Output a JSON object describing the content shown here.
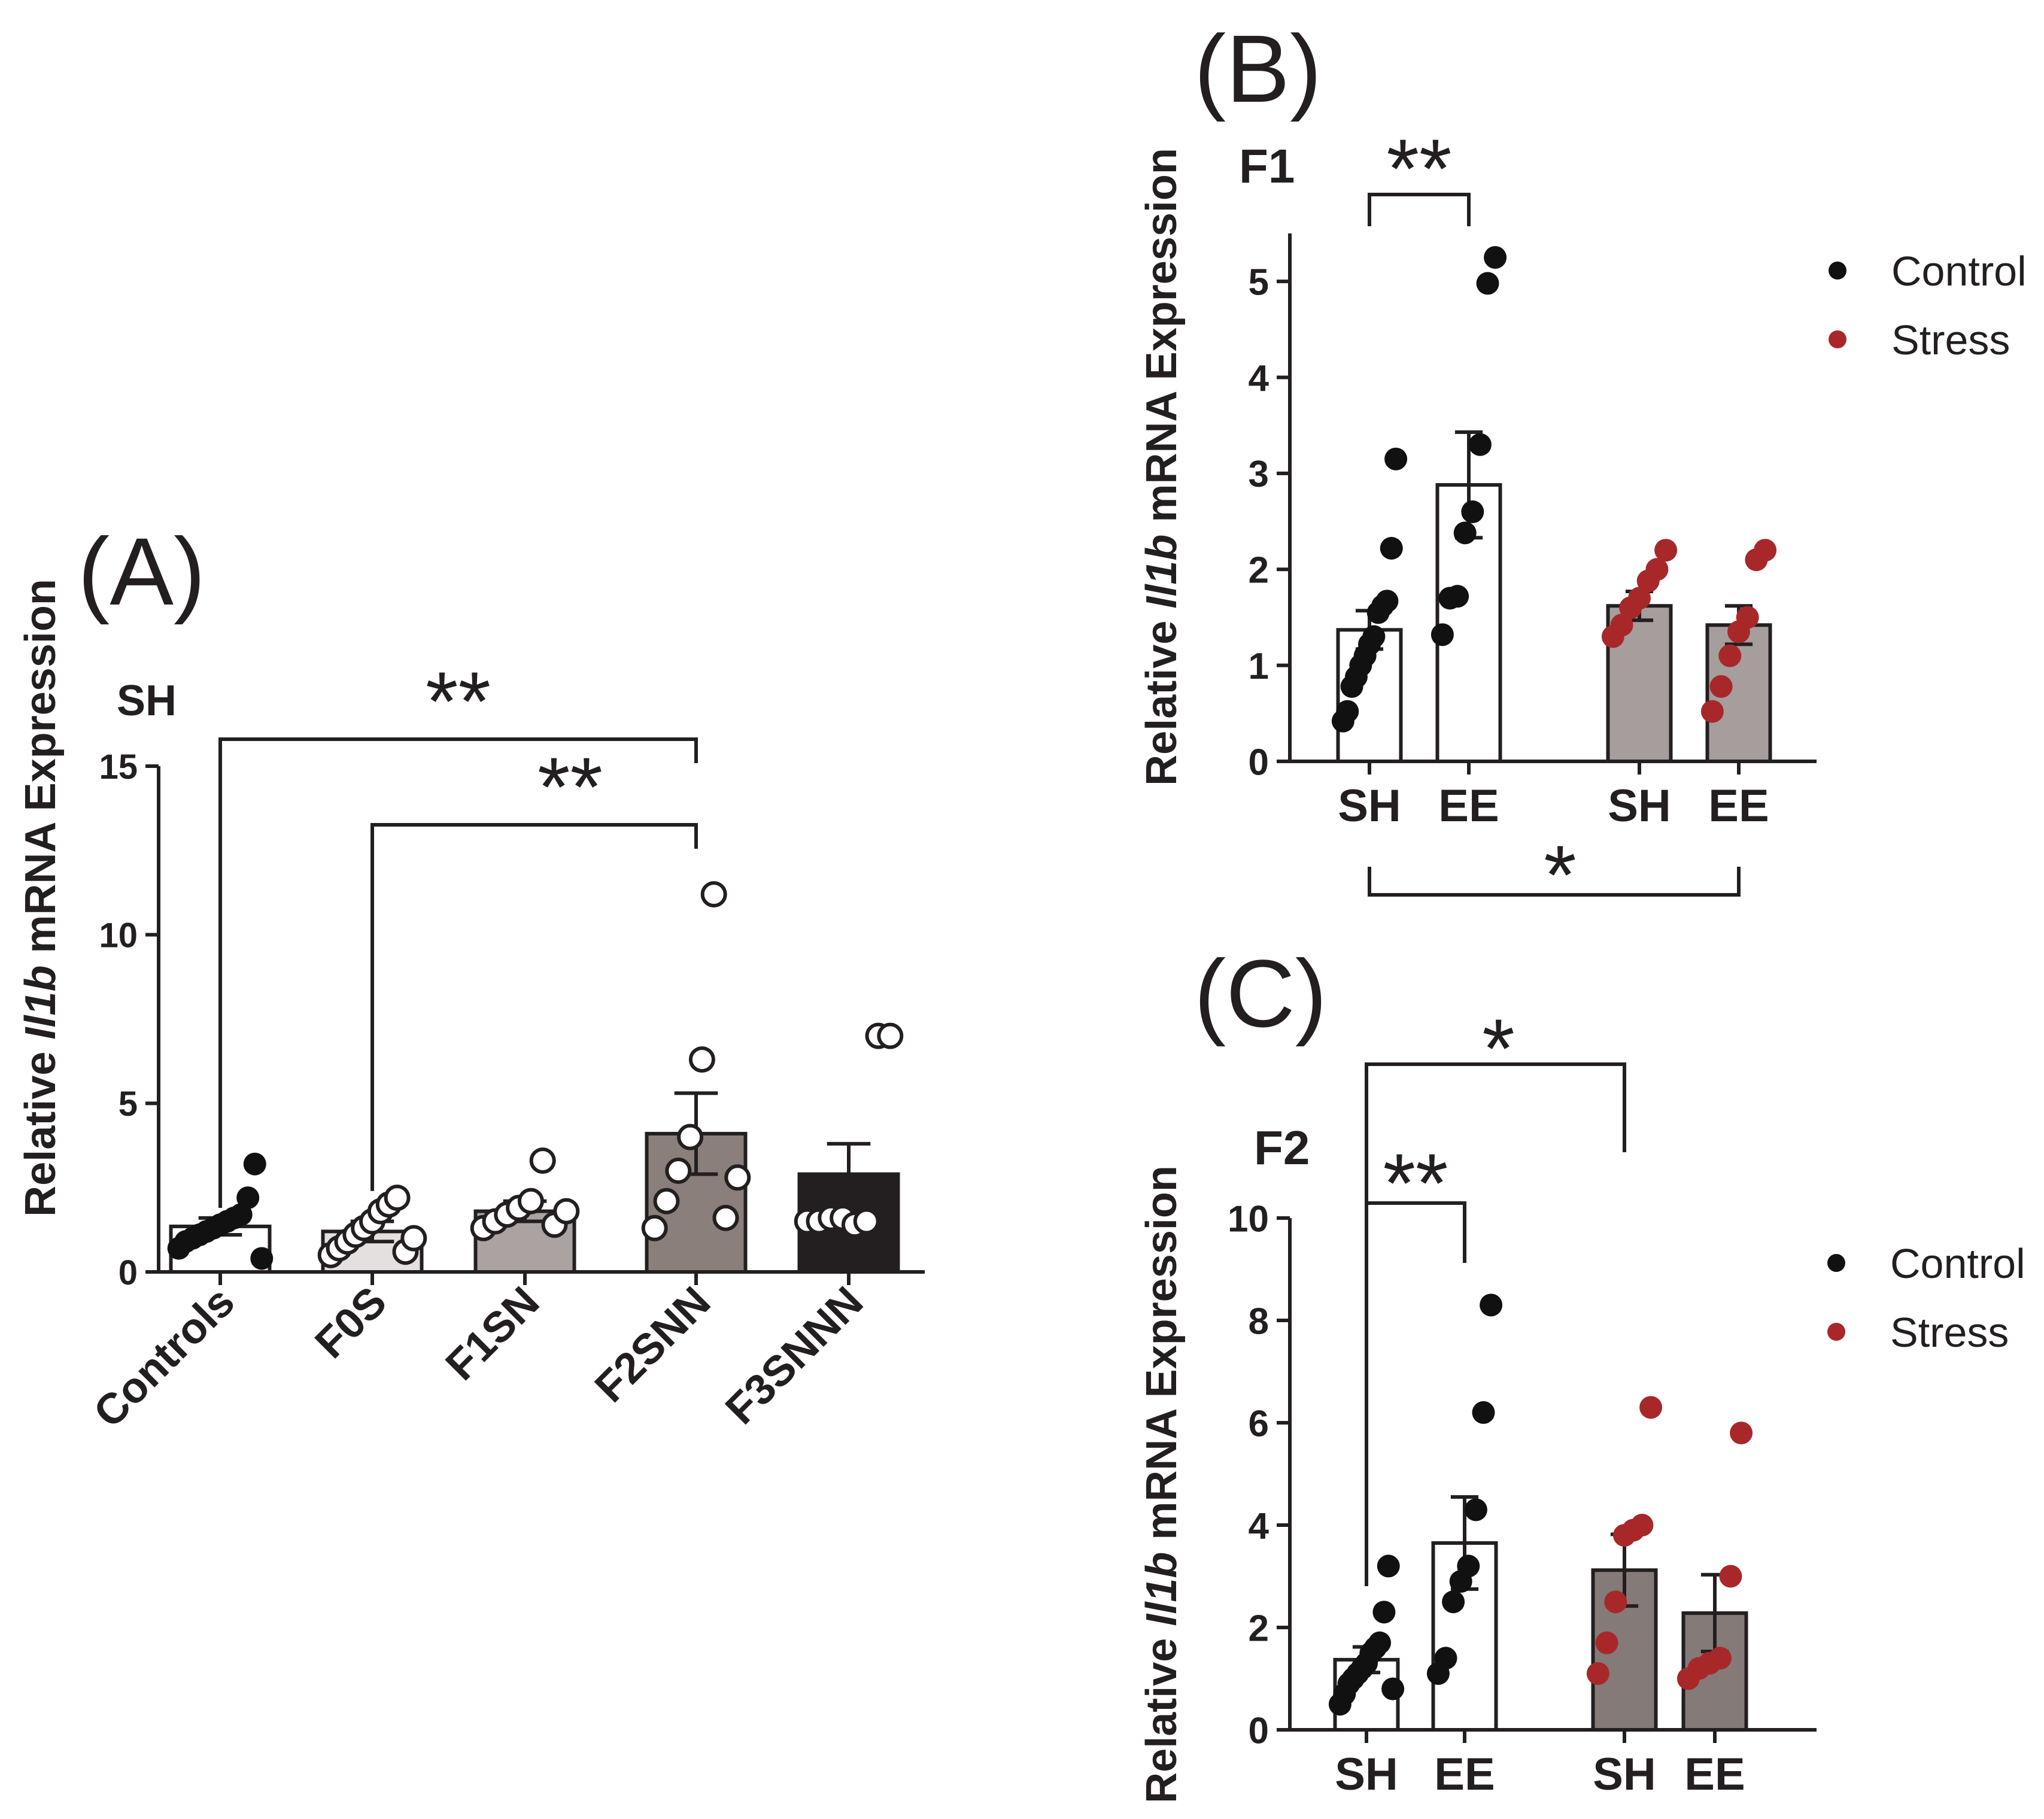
{
  "colors": {
    "ink": "#231f20",
    "control": "#111111",
    "stress": "#a8282a",
    "a_fills": [
      "#ffffff",
      "#e4e0df",
      "#aba3a2",
      "#8a7f7b",
      "#231f20"
    ],
    "b_stress_fill": "#a69e9c",
    "c_stress_fill": "#847a77"
  },
  "chart_data": [
    {
      "id": "A",
      "type": "bar",
      "panel_letter": "(A)",
      "subtitle": "SH",
      "ylabel_prefix": "Relative ",
      "ylabel_gene": "Il1b",
      "ylabel_suffix": " mRNA Expression",
      "categories": [
        "Controls",
        "F0S",
        "F1SN",
        "F2SNN",
        "F3SNNN"
      ],
      "values": [
        1.35,
        1.2,
        1.8,
        4.1,
        2.9
      ],
      "sem": [
        0.25,
        0.3,
        0.3,
        1.2,
        0.9
      ],
      "points": [
        [
          0.7,
          0.9,
          1.0,
          1.1,
          1.2,
          1.3,
          1.4,
          1.5,
          1.6,
          1.7,
          2.2,
          3.2,
          0.4
        ],
        [
          0.5,
          0.7,
          0.9,
          1.1,
          1.3,
          1.5,
          1.8,
          2.0,
          2.2,
          0.6,
          1.0
        ],
        [
          1.3,
          1.5,
          1.7,
          1.9,
          2.1,
          3.3,
          1.4,
          1.8
        ],
        [
          1.3,
          2.1,
          3.0,
          4.0,
          6.3,
          11.2,
          1.6,
          2.8
        ],
        [
          1.5,
          1.5,
          1.6,
          1.6,
          1.4,
          1.5,
          7.0,
          7.0
        ]
      ],
      "marker": [
        "filled",
        "open",
        "open",
        "open",
        "open"
      ],
      "yticks": [
        "0",
        "5",
        "10",
        "15"
      ],
      "ylim": [
        0,
        15
      ],
      "brackets": [
        {
          "from": "Controls",
          "to": "F2SNN",
          "label": "**"
        },
        {
          "from": "F0S",
          "to": "F2SNN",
          "label": "**"
        }
      ]
    },
    {
      "id": "B",
      "type": "bar",
      "panel_letter": "(B)",
      "subtitle": "F1",
      "ylabel_prefix": "Relative ",
      "ylabel_gene": "Il1b",
      "ylabel_suffix": " mRNA Expression",
      "categories": [
        "SH",
        "EE",
        "SH",
        "EE"
      ],
      "groups": [
        "Control",
        "Control",
        "Stress",
        "Stress"
      ],
      "values": [
        1.37,
        2.88,
        1.62,
        1.42
      ],
      "sem": [
        0.2,
        0.55,
        0.15,
        0.2
      ],
      "points": [
        [
          0.42,
          0.52,
          0.78,
          0.88,
          1.0,
          1.1,
          1.22,
          1.3,
          1.55,
          1.62,
          1.67,
          2.22,
          3.15
        ],
        [
          1.32,
          1.7,
          1.72,
          2.38,
          2.6,
          3.3,
          4.98,
          5.25
        ],
        [
          1.3,
          1.42,
          1.6,
          1.7,
          1.88,
          2.0,
          2.2
        ],
        [
          0.52,
          0.78,
          1.1,
          1.35,
          1.5,
          2.1,
          2.2
        ]
      ],
      "yticks": [
        "0",
        "1",
        "2",
        "3",
        "4",
        "5"
      ],
      "ylim": [
        0,
        5.5
      ],
      "legend": [
        {
          "label": "Control"
        },
        {
          "label": "Stress"
        }
      ],
      "brackets": [
        {
          "from": 0,
          "to": 1,
          "label": "**",
          "position": "top"
        },
        {
          "from": 0,
          "to": 3,
          "label": "*",
          "position": "bottom"
        }
      ]
    },
    {
      "id": "C",
      "type": "bar",
      "panel_letter": "(C)",
      "subtitle": "F2",
      "ylabel_prefix": "Relative ",
      "ylabel_gene": "Il1b",
      "ylabel_suffix": " mRNA Expression",
      "categories": [
        "SH",
        "EE",
        "SH",
        "EE"
      ],
      "groups": [
        "Control",
        "Control",
        "Stress",
        "Stress"
      ],
      "values": [
        1.37,
        3.65,
        3.12,
        2.28
      ],
      "sem": [
        0.25,
        0.9,
        0.7,
        0.75
      ],
      "points": [
        [
          0.5,
          0.7,
          0.9,
          1.0,
          1.1,
          1.2,
          1.3,
          1.5,
          1.6,
          1.7,
          2.3,
          3.2,
          0.8
        ],
        [
          1.1,
          1.4,
          2.5,
          2.9,
          3.2,
          4.3,
          6.2,
          8.3
        ],
        [
          1.1,
          1.7,
          2.5,
          3.8,
          3.9,
          4.0,
          6.3
        ],
        [
          1.0,
          1.2,
          1.3,
          1.4,
          3.0,
          5.8
        ]
      ],
      "yticks": [
        "0",
        "2",
        "4",
        "6",
        "8",
        "10"
      ],
      "ylim": [
        0,
        10
      ],
      "legend": [
        {
          "label": "Control"
        },
        {
          "label": "Stress"
        }
      ],
      "brackets": [
        {
          "from": 0,
          "to": 1,
          "label": "**",
          "position": "top"
        },
        {
          "from": 0,
          "to": 2,
          "label": "*",
          "position": "top"
        }
      ]
    }
  ]
}
